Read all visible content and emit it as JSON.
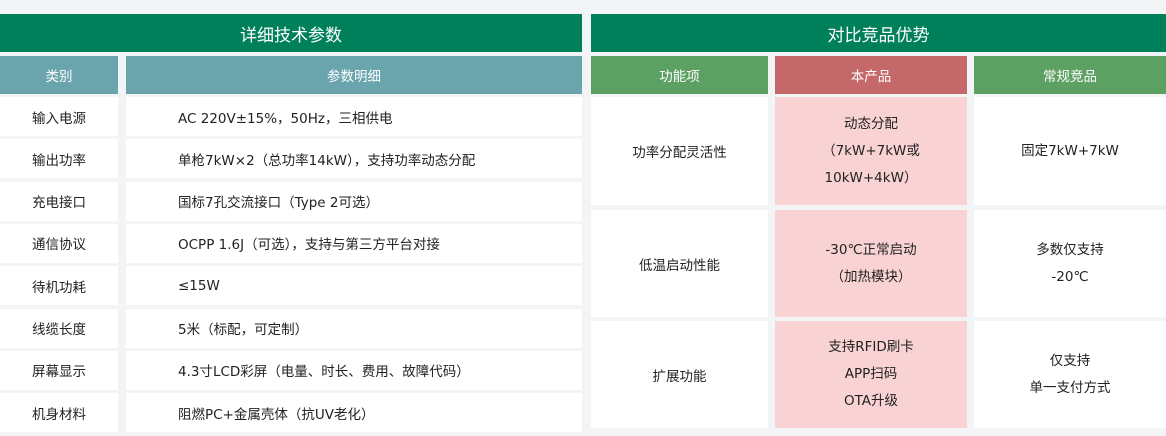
{
  "specs": {
    "title": "详细技术参数",
    "headers": [
      "类别",
      "参数明细"
    ],
    "rows": [
      {
        "category": "输入电源",
        "detail": "AC 220V±15%，50Hz，三相供电"
      },
      {
        "category": "输出功率",
        "detail": "单枪7kW×2（总功率14kW），支持功率动态分配"
      },
      {
        "category": "充电接口",
        "detail": "国标7孔交流接口（Type 2可选）"
      },
      {
        "category": "通信协议",
        "detail": "OCPP 1.6J（可选），支持与第三方平台对接"
      },
      {
        "category": "待机功耗",
        "detail": "≤15W"
      },
      {
        "category": "线缆长度",
        "detail": "5米（标配，可定制）"
      },
      {
        "category": "屏幕显示",
        "detail": "4.3寸LCD彩屏（电量、时长、费用、故障代码）"
      },
      {
        "category": "机身材料",
        "detail": "阻燃PC+金属壳体（抗UV老化）"
      }
    ]
  },
  "compare": {
    "title": "对比竞品优势",
    "headers": [
      "功能项",
      "本产品",
      "常规竞品"
    ],
    "rows": [
      {
        "feature": "功率分配灵活性",
        "ours": [
          "动态分配",
          "（7kW+7kW或",
          "10kW+4kW）"
        ],
        "others": [
          "固定7kW+7kW"
        ]
      },
      {
        "feature": "低温启动性能",
        "ours": [
          "-30℃正常启动",
          "（加热模块）"
        ],
        "others": [
          "多数仅支持",
          "-20℃"
        ]
      },
      {
        "feature": "扩展功能",
        "ours": [
          "支持RFID刷卡",
          "APP扫码",
          "OTA升级"
        ],
        "others": [
          "仅支持",
          "单一支付方式"
        ]
      }
    ]
  },
  "colors": {
    "title": "#00805a",
    "spec_header": "#6aa5ae",
    "compare_header": "#5ca062",
    "ours_header": "#c5686a",
    "ours_cell": "#f9d3d4"
  }
}
